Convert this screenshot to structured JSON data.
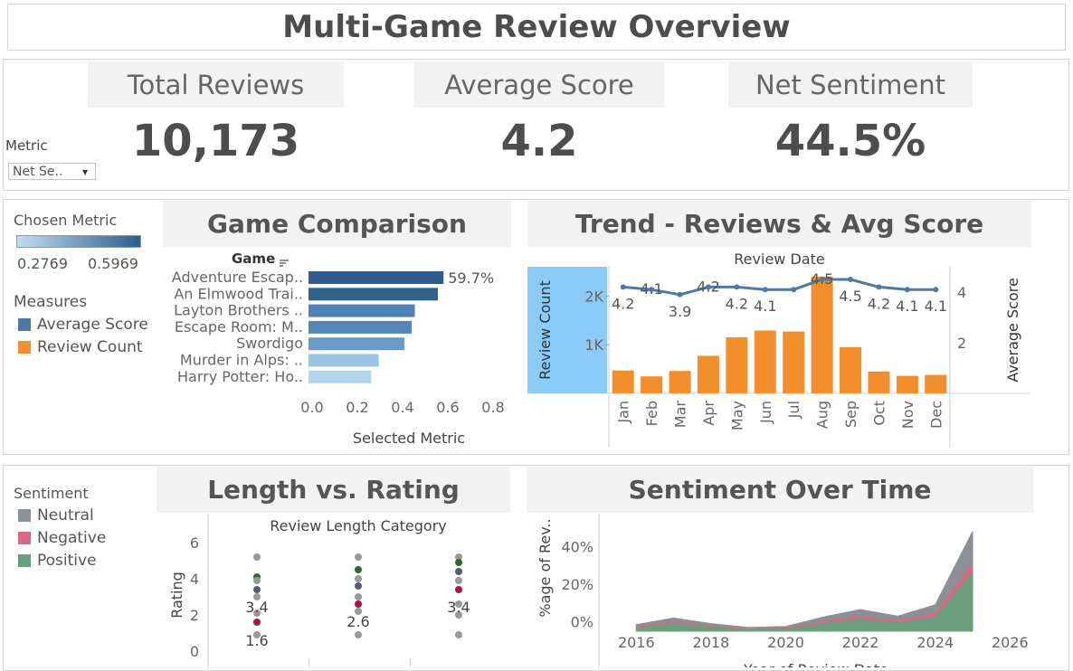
{
  "header": {
    "title": "Multi-Game Review Overview"
  },
  "kpis": {
    "total_reviews": {
      "label": "Total Reviews",
      "value": "10,173"
    },
    "average_score": {
      "label": "Average Score",
      "value": "4.2"
    },
    "net_sentiment": {
      "label": "Net Sentiment",
      "value": "44.5%"
    }
  },
  "metric_filter": {
    "label": "Metric",
    "value": "Net Se..",
    "arrow": "▾"
  },
  "legend_metric": {
    "title": "Chosen Metric",
    "min": "0.2769",
    "max": "0.5969",
    "color_low": "#c0dcf0",
    "color_high": "#2e5d8e"
  },
  "legend_measures": {
    "title": "Measures",
    "items": [
      {
        "label": "Average Score",
        "color": "#4e79a7"
      },
      {
        "label": "Review Count",
        "color": "#f28e2b"
      }
    ]
  },
  "legend_sentiment": {
    "title": "Sentiment",
    "items": [
      {
        "label": "Neutral",
        "color": "#8c8f96"
      },
      {
        "label": "Negative",
        "color": "#d36a86"
      },
      {
        "label": "Positive",
        "color": "#6b9e7b"
      }
    ]
  },
  "game_comparison": {
    "title": "Game Comparison",
    "column_header": "Game",
    "sort_icon": "sort-icon",
    "chart_data": {
      "type": "bar",
      "orientation": "horizontal",
      "categories": [
        "Adventure Escap..",
        "An Elmwood Trai..",
        "Layton Brothers ..",
        "Escape Room: M..",
        "Swordigo",
        "Murder in Alps: ..",
        "Harry Potter: Ho.."
      ],
      "values": [
        0.597,
        0.572,
        0.47,
        0.456,
        0.424,
        0.31,
        0.277
      ],
      "data_labels": [
        "59.7%",
        "",
        "",
        "",
        "",
        "",
        ""
      ],
      "xlabel": "Selected Metric",
      "xlim": [
        0,
        0.9
      ],
      "xticks": [
        "0.0",
        "0.2",
        "0.4",
        "0.6",
        "0.8"
      ],
      "colors": [
        "#2e5d8e",
        "#30608f",
        "#4f81b2",
        "#5585b4",
        "#6a9bc7",
        "#9ac6e4",
        "#b1d5ec"
      ]
    }
  },
  "trend": {
    "title": "Trend - Reviews & Avg Score",
    "chart_data": {
      "type": "bar",
      "categories": [
        "Jan",
        "Feb",
        "Mar",
        "Apr",
        "May",
        "Jun",
        "Jul",
        "Aug",
        "Sep",
        "Oct",
        "Nov",
        "Dec"
      ],
      "series": [
        {
          "name": "Review Count",
          "axis": "left",
          "type": "bar",
          "color": "#f28e2b",
          "values": [
            470,
            350,
            460,
            770,
            1150,
            1290,
            1270,
            2400,
            950,
            450,
            360,
            380
          ]
        },
        {
          "name": "Average Score",
          "axis": "right",
          "type": "line",
          "color": "#4e79a7",
          "values": [
            4.2,
            4.1,
            3.9,
            4.2,
            4.2,
            4.1,
            4.1,
            4.5,
            4.5,
            4.2,
            4.1,
            4.1
          ]
        }
      ],
      "score_labels": [
        "4.2",
        "4.1",
        "3.9",
        "4.2",
        "4.2",
        "4.1",
        "",
        "4.5",
        "4.5",
        "4.2",
        "4.1",
        "4.1"
      ],
      "xlabel": "Review Date",
      "ylabel": "Review Count",
      "y2label": "Average Score",
      "ylim": [
        0,
        2600
      ],
      "yticks": [
        {
          "v": 1000,
          "t": "1K"
        },
        {
          "v": 2000,
          "t": "2K"
        }
      ],
      "y2lim": [
        0,
        5
      ],
      "y2ticks": [
        {
          "v": 2,
          "t": "2"
        },
        {
          "v": 4,
          "t": "4"
        }
      ]
    }
  },
  "length_rating": {
    "title": "Length vs. Rating",
    "chart_data": {
      "type": "scatter",
      "xlabel": "Review Length Category",
      "ylabel": "Rating",
      "ylim": [
        0,
        6.5
      ],
      "yticks": [
        "0",
        "2",
        "4",
        "6"
      ],
      "columns": [
        {
          "points": [
            {
              "y": 5.2,
              "c": "#999999"
            },
            {
              "y": 4.1,
              "c": "#2e6b3a"
            },
            {
              "y": 3.9,
              "c": "#999999"
            },
            {
              "y": 3.4,
              "c": "#555d6b"
            },
            {
              "y": 3.0,
              "c": "#999999"
            },
            {
              "y": 2.1,
              "c": "#999999"
            },
            {
              "y": 1.6,
              "c": "#b0123e"
            },
            {
              "y": 0.9,
              "c": "#999999"
            }
          ],
          "labels": [
            {
              "y": 3.4,
              "t": "3.4"
            },
            {
              "y": 1.6,
              "t": "1.6"
            }
          ]
        },
        {
          "points": [
            {
              "y": 5.2,
              "c": "#999999"
            },
            {
              "y": 4.5,
              "c": "#2e6b3a"
            },
            {
              "y": 4.0,
              "c": "#999999"
            },
            {
              "y": 3.6,
              "c": "#555d6b"
            },
            {
              "y": 3.0,
              "c": "#999999"
            },
            {
              "y": 2.6,
              "c": "#b0123e"
            },
            {
              "y": 2.2,
              "c": "#999999"
            },
            {
              "y": 0.9,
              "c": "#999999"
            }
          ],
          "labels": [
            {
              "y": 2.6,
              "t": "2.6"
            }
          ]
        },
        {
          "points": [
            {
              "y": 5.2,
              "c": "#999999"
            },
            {
              "y": 4.9,
              "c": "#2e6b3a"
            },
            {
              "y": 4.4,
              "c": "#555d6b"
            },
            {
              "y": 3.9,
              "c": "#999999"
            },
            {
              "y": 3.4,
              "c": "#b0123e"
            },
            {
              "y": 2.6,
              "c": "#999999"
            },
            {
              "y": 2.0,
              "c": "#999999"
            },
            {
              "y": 0.9,
              "c": "#999999"
            }
          ],
          "labels": [
            {
              "y": 3.4,
              "t": "3.4"
            }
          ]
        }
      ]
    }
  },
  "sentiment_time": {
    "title": "Sentiment Over Time",
    "chart_data": {
      "type": "area",
      "x": [
        2016,
        2017,
        2018,
        2019,
        2020,
        2021,
        2022,
        2023,
        2024,
        2025
      ],
      "series": [
        {
          "name": "Positive",
          "color": "#6b9e7b",
          "values": [
            -3,
            -0.5,
            -2.5,
            -4,
            -3.5,
            -0.5,
            2,
            0,
            3,
            27
          ]
        },
        {
          "name": "Negative",
          "color": "#d36a86",
          "values": [
            0.5,
            1,
            0.5,
            0.5,
            0.5,
            1,
            1.5,
            1,
            2,
            5
          ]
        },
        {
          "name": "Neutral",
          "color": "#8c8f96",
          "values": [
            1,
            1.5,
            1,
            0.5,
            0.5,
            2,
            3,
            2,
            4,
            16
          ]
        }
      ],
      "xlabel": "Year of Review Date",
      "ylabel": "%age of Rev..",
      "ylim": [
        -5,
        55
      ],
      "yticks": [
        {
          "v": 0,
          "t": "0%"
        },
        {
          "v": 20,
          "t": "20%"
        },
        {
          "v": 40,
          "t": "40%"
        }
      ],
      "xticks": [
        "2016",
        "2018",
        "2020",
        "2022",
        "2024",
        "2026"
      ]
    }
  }
}
